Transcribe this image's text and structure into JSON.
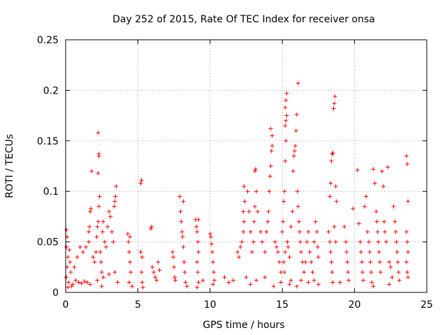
{
  "chart_data": {
    "type": "scatter",
    "title": "Day 252 of 2015, Rate Of TEC Index for receiver onsa",
    "xlabel": "GPS time / hours",
    "ylabel": "ROTI / TECUs",
    "xlim": [
      0,
      25
    ],
    "ylim": [
      0,
      0.25
    ],
    "xticks": [
      "0",
      "5",
      "10",
      "15",
      "20",
      "25"
    ],
    "yticks": [
      "0",
      "0.05",
      "0.1",
      "0.15",
      "0.2",
      "0.25"
    ],
    "grid": true,
    "marker": "plus",
    "color": "#ff0000",
    "series": [
      {
        "name": "ROTI",
        "points": [
          [
            0.05,
            0.062
          ],
          [
            0.1,
            0.055
          ],
          [
            0.05,
            0.045
          ],
          [
            0.15,
            0.035
          ],
          [
            0.1,
            0.025
          ],
          [
            0.05,
            0.015
          ],
          [
            0.2,
            0.01
          ],
          [
            0.3,
            0.03
          ],
          [
            0.25,
            0.042
          ],
          [
            0.35,
            0.02
          ],
          [
            0.5,
            0.008
          ],
          [
            0.7,
            0.012
          ],
          [
            0.9,
            0.01
          ],
          [
            1.1,
            0.009
          ],
          [
            1.3,
            0.011
          ],
          [
            1.5,
            0.01
          ],
          [
            1.7,
            0.008
          ],
          [
            0.6,
            0.025
          ],
          [
            0.8,
            0.035
          ],
          [
            1.0,
            0.045
          ],
          [
            1.2,
            0.04
          ],
          [
            1.4,
            0.045
          ],
          [
            1.6,
            0.05
          ],
          [
            1.6,
            0.06
          ],
          [
            1.65,
            0.065
          ],
          [
            1.7,
            0.08
          ],
          [
            1.75,
            0.083
          ],
          [
            1.8,
            0.12
          ],
          [
            1.9,
            0.035
          ],
          [
            2.0,
            0.03
          ],
          [
            2.1,
            0.04
          ],
          [
            2.15,
            0.055
          ],
          [
            2.2,
            0.065
          ],
          [
            2.25,
            0.07
          ],
          [
            2.3,
            0.085
          ],
          [
            2.35,
            0.095
          ],
          [
            2.25,
            0.118
          ],
          [
            2.3,
            0.135
          ],
          [
            2.3,
            0.137
          ],
          [
            2.25,
            0.158
          ],
          [
            2.4,
            0.04
          ],
          [
            2.45,
            0.03
          ],
          [
            2.5,
            0.02
          ],
          [
            2.55,
            0.06
          ],
          [
            2.6,
            0.07
          ],
          [
            2.7,
            0.05
          ],
          [
            2.8,
            0.045
          ],
          [
            2.9,
            0.065
          ],
          [
            3.0,
            0.08
          ],
          [
            3.1,
            0.075
          ],
          [
            3.2,
            0.06
          ],
          [
            3.3,
            0.05
          ],
          [
            3.35,
            0.085
          ],
          [
            3.4,
            0.09
          ],
          [
            3.45,
            0.095
          ],
          [
            3.5,
            0.105
          ],
          [
            2.2,
            0.012
          ],
          [
            2.6,
            0.015
          ],
          [
            3.0,
            0.018
          ],
          [
            3.4,
            0.02
          ],
          [
            4.3,
            0.058
          ],
          [
            4.35,
            0.05
          ],
          [
            4.4,
            0.04
          ],
          [
            4.45,
            0.03
          ],
          [
            4.5,
            0.02
          ],
          [
            4.4,
            0.01
          ],
          [
            4.45,
            0.055
          ],
          [
            5.2,
            0.108
          ],
          [
            5.25,
            0.111
          ],
          [
            5.2,
            0.04
          ],
          [
            5.3,
            0.035
          ],
          [
            5.25,
            0.02
          ],
          [
            5.3,
            0.01
          ],
          [
            5.35,
            0.005
          ],
          [
            5.9,
            0.063
          ],
          [
            5.95,
            0.065
          ],
          [
            6.0,
            0.025
          ],
          [
            6.1,
            0.02
          ],
          [
            6.2,
            0.015
          ],
          [
            6.4,
            0.03
          ],
          [
            6.5,
            0.022
          ],
          [
            6.3,
            0.012
          ],
          [
            7.4,
            0.04
          ],
          [
            7.45,
            0.035
          ],
          [
            7.5,
            0.025
          ],
          [
            7.55,
            0.015
          ],
          [
            7.6,
            0.012
          ],
          [
            7.9,
            0.095
          ],
          [
            7.95,
            0.08
          ],
          [
            8.0,
            0.07
          ],
          [
            8.05,
            0.06
          ],
          [
            8.1,
            0.055
          ],
          [
            8.15,
            0.045
          ],
          [
            8.2,
            0.03
          ],
          [
            8.25,
            0.02
          ],
          [
            8.3,
            0.01
          ],
          [
            8.15,
            0.09
          ],
          [
            9.0,
            0.072
          ],
          [
            9.05,
            0.065
          ],
          [
            9.1,
            0.06
          ],
          [
            9.15,
            0.05
          ],
          [
            9.2,
            0.04
          ],
          [
            9.1,
            0.03
          ],
          [
            9.15,
            0.02
          ],
          [
            9.2,
            0.01
          ],
          [
            9.1,
            0.005
          ],
          [
            9.2,
            0.072
          ],
          [
            10.0,
            0.058
          ],
          [
            10.05,
            0.055
          ],
          [
            10.1,
            0.048
          ],
          [
            10.15,
            0.04
          ],
          [
            10.2,
            0.03
          ],
          [
            10.25,
            0.02
          ],
          [
            10.3,
            0.012
          ],
          [
            10.2,
            0.008
          ],
          [
            11.0,
            0.015
          ],
          [
            11.3,
            0.01
          ],
          [
            11.6,
            0.012
          ],
          [
            11.9,
            0.04
          ],
          [
            12.0,
            0.035
          ],
          [
            12.1,
            0.045
          ],
          [
            12.2,
            0.05
          ],
          [
            12.3,
            0.06
          ],
          [
            12.35,
            0.07
          ],
          [
            12.3,
            0.08
          ],
          [
            12.4,
            0.09
          ],
          [
            12.35,
            0.105
          ],
          [
            12.6,
            0.1
          ],
          [
            12.7,
            0.08
          ],
          [
            12.8,
            0.06
          ],
          [
            12.9,
            0.04
          ],
          [
            13.0,
            0.05
          ],
          [
            13.05,
            0.07
          ],
          [
            13.1,
            0.085
          ],
          [
            13.1,
            0.12
          ],
          [
            13.15,
            0.122
          ],
          [
            13.2,
            0.1
          ],
          [
            13.3,
            0.08
          ],
          [
            13.5,
            0.06
          ],
          [
            13.6,
            0.05
          ],
          [
            13.8,
            0.04
          ],
          [
            13.9,
            0.06
          ],
          [
            14.0,
            0.07
          ],
          [
            14.05,
            0.08
          ],
          [
            14.1,
            0.1
          ],
          [
            14.15,
            0.115
          ],
          [
            14.2,
            0.125
          ],
          [
            14.25,
            0.14
          ],
          [
            14.3,
            0.145
          ],
          [
            14.2,
            0.162
          ],
          [
            14.3,
            0.155
          ],
          [
            14.5,
            0.05
          ],
          [
            14.6,
            0.045
          ],
          [
            14.7,
            0.04
          ],
          [
            14.8,
            0.03
          ],
          [
            14.9,
            0.02
          ],
          [
            14.9,
            0.01
          ],
          [
            12.5,
            0.015
          ],
          [
            13.2,
            0.012
          ],
          [
            13.8,
            0.015
          ],
          [
            15.0,
            0.06
          ],
          [
            15.05,
            0.07
          ],
          [
            15.1,
            0.09
          ],
          [
            15.15,
            0.1
          ],
          [
            15.2,
            0.13
          ],
          [
            15.25,
            0.15
          ],
          [
            15.2,
            0.165
          ],
          [
            15.25,
            0.17
          ],
          [
            15.3,
            0.175
          ],
          [
            15.2,
            0.183
          ],
          [
            15.25,
            0.19
          ],
          [
            15.3,
            0.197
          ],
          [
            15.1,
            0.03
          ],
          [
            15.15,
            0.02
          ],
          [
            15.2,
            0.04
          ],
          [
            15.35,
            0.05
          ],
          [
            15.4,
            0.045
          ],
          [
            15.5,
            0.035
          ],
          [
            15.6,
            0.065
          ],
          [
            15.7,
            0.08
          ],
          [
            15.75,
            0.12
          ],
          [
            15.8,
            0.135
          ],
          [
            15.85,
            0.14
          ],
          [
            15.9,
            0.145
          ],
          [
            15.95,
            0.16
          ],
          [
            16.0,
            0.176
          ],
          [
            16.1,
            0.207
          ],
          [
            16.05,
            0.1
          ],
          [
            16.1,
            0.085
          ],
          [
            16.15,
            0.07
          ],
          [
            16.2,
            0.06
          ],
          [
            16.25,
            0.05
          ],
          [
            16.3,
            0.04
          ],
          [
            16.4,
            0.03
          ],
          [
            16.5,
            0.02
          ],
          [
            16.6,
            0.03
          ],
          [
            16.7,
            0.05
          ],
          [
            16.8,
            0.06
          ],
          [
            16.9,
            0.04
          ],
          [
            17.0,
            0.03
          ],
          [
            17.1,
            0.02
          ],
          [
            17.2,
            0.05
          ],
          [
            17.3,
            0.07
          ],
          [
            17.4,
            0.06
          ],
          [
            17.45,
            0.045
          ],
          [
            17.5,
            0.035
          ],
          [
            16.3,
            0.012
          ],
          [
            16.8,
            0.01
          ],
          [
            17.2,
            0.012
          ],
          [
            15.6,
            0.012
          ],
          [
            18.2,
            0.06
          ],
          [
            18.3,
            0.05
          ],
          [
            18.35,
            0.04
          ],
          [
            18.4,
            0.03
          ],
          [
            18.45,
            0.02
          ],
          [
            18.5,
            0.01
          ],
          [
            18.3,
            0.095
          ],
          [
            18.35,
            0.108
          ],
          [
            18.4,
            0.13
          ],
          [
            18.45,
            0.137
          ],
          [
            18.5,
            0.138
          ],
          [
            18.55,
            0.182
          ],
          [
            18.6,
            0.187
          ],
          [
            18.65,
            0.194
          ],
          [
            18.7,
            0.105
          ],
          [
            18.75,
            0.09
          ],
          [
            18.6,
            0.065
          ],
          [
            18.7,
            0.05
          ],
          [
            19.3,
            0.065
          ],
          [
            19.4,
            0.05
          ],
          [
            19.45,
            0.04
          ],
          [
            19.5,
            0.03
          ],
          [
            19.55,
            0.02
          ],
          [
            19.6,
            0.012
          ],
          [
            19.9,
            0.083
          ],
          [
            20.2,
            0.121
          ],
          [
            20.3,
            0.068
          ],
          [
            20.4,
            0.05
          ],
          [
            20.45,
            0.04
          ],
          [
            20.5,
            0.03
          ],
          [
            20.55,
            0.02
          ],
          [
            20.6,
            0.012
          ],
          [
            20.7,
            0.085
          ],
          [
            20.8,
            0.095
          ],
          [
            20.9,
            0.06
          ],
          [
            21.0,
            0.05
          ],
          [
            21.05,
            0.04
          ],
          [
            21.1,
            0.03
          ],
          [
            21.15,
            0.02
          ],
          [
            21.2,
            0.01
          ],
          [
            21.3,
            0.122
          ],
          [
            21.4,
            0.108
          ],
          [
            21.5,
            0.08
          ],
          [
            21.55,
            0.07
          ],
          [
            21.6,
            0.06
          ],
          [
            21.65,
            0.05
          ],
          [
            21.7,
            0.04
          ],
          [
            21.75,
            0.03
          ],
          [
            21.8,
            0.02
          ],
          [
            21.9,
            0.12
          ],
          [
            22.0,
            0.105
          ],
          [
            22.05,
            0.07
          ],
          [
            22.1,
            0.06
          ],
          [
            22.2,
            0.05
          ],
          [
            22.3,
            0.124
          ],
          [
            22.4,
            0.03
          ],
          [
            22.5,
            0.025
          ],
          [
            22.6,
            0.015
          ],
          [
            22.7,
            0.085
          ],
          [
            22.8,
            0.07
          ],
          [
            22.85,
            0.06
          ],
          [
            22.9,
            0.05
          ],
          [
            22.95,
            0.04
          ],
          [
            23.0,
            0.03
          ],
          [
            23.05,
            0.02
          ],
          [
            23.1,
            0.012
          ],
          [
            23.6,
            0.135
          ],
          [
            23.65,
            0.127
          ],
          [
            23.7,
            0.09
          ],
          [
            23.6,
            0.06
          ],
          [
            23.65,
            0.05
          ],
          [
            23.7,
            0.04
          ],
          [
            23.6,
            0.03
          ],
          [
            23.65,
            0.02
          ],
          [
            23.7,
            0.015
          ],
          [
            0.15,
            0.005
          ],
          [
            0.4,
            0.006
          ],
          [
            2.5,
            0.006
          ],
          [
            3.6,
            0.01
          ],
          [
            9.5,
            0.012
          ],
          [
            12.8,
            0.008
          ],
          [
            14.4,
            0.006
          ],
          [
            16.0,
            0.006
          ],
          [
            17.5,
            0.008
          ],
          [
            19.0,
            0.01
          ],
          [
            21.3,
            0.006
          ],
          [
            22.4,
            0.008
          ],
          [
            15.5,
            0.008
          ],
          [
            4.6,
            0.006
          ],
          [
            8.4,
            0.006
          ]
        ]
      }
    ]
  }
}
